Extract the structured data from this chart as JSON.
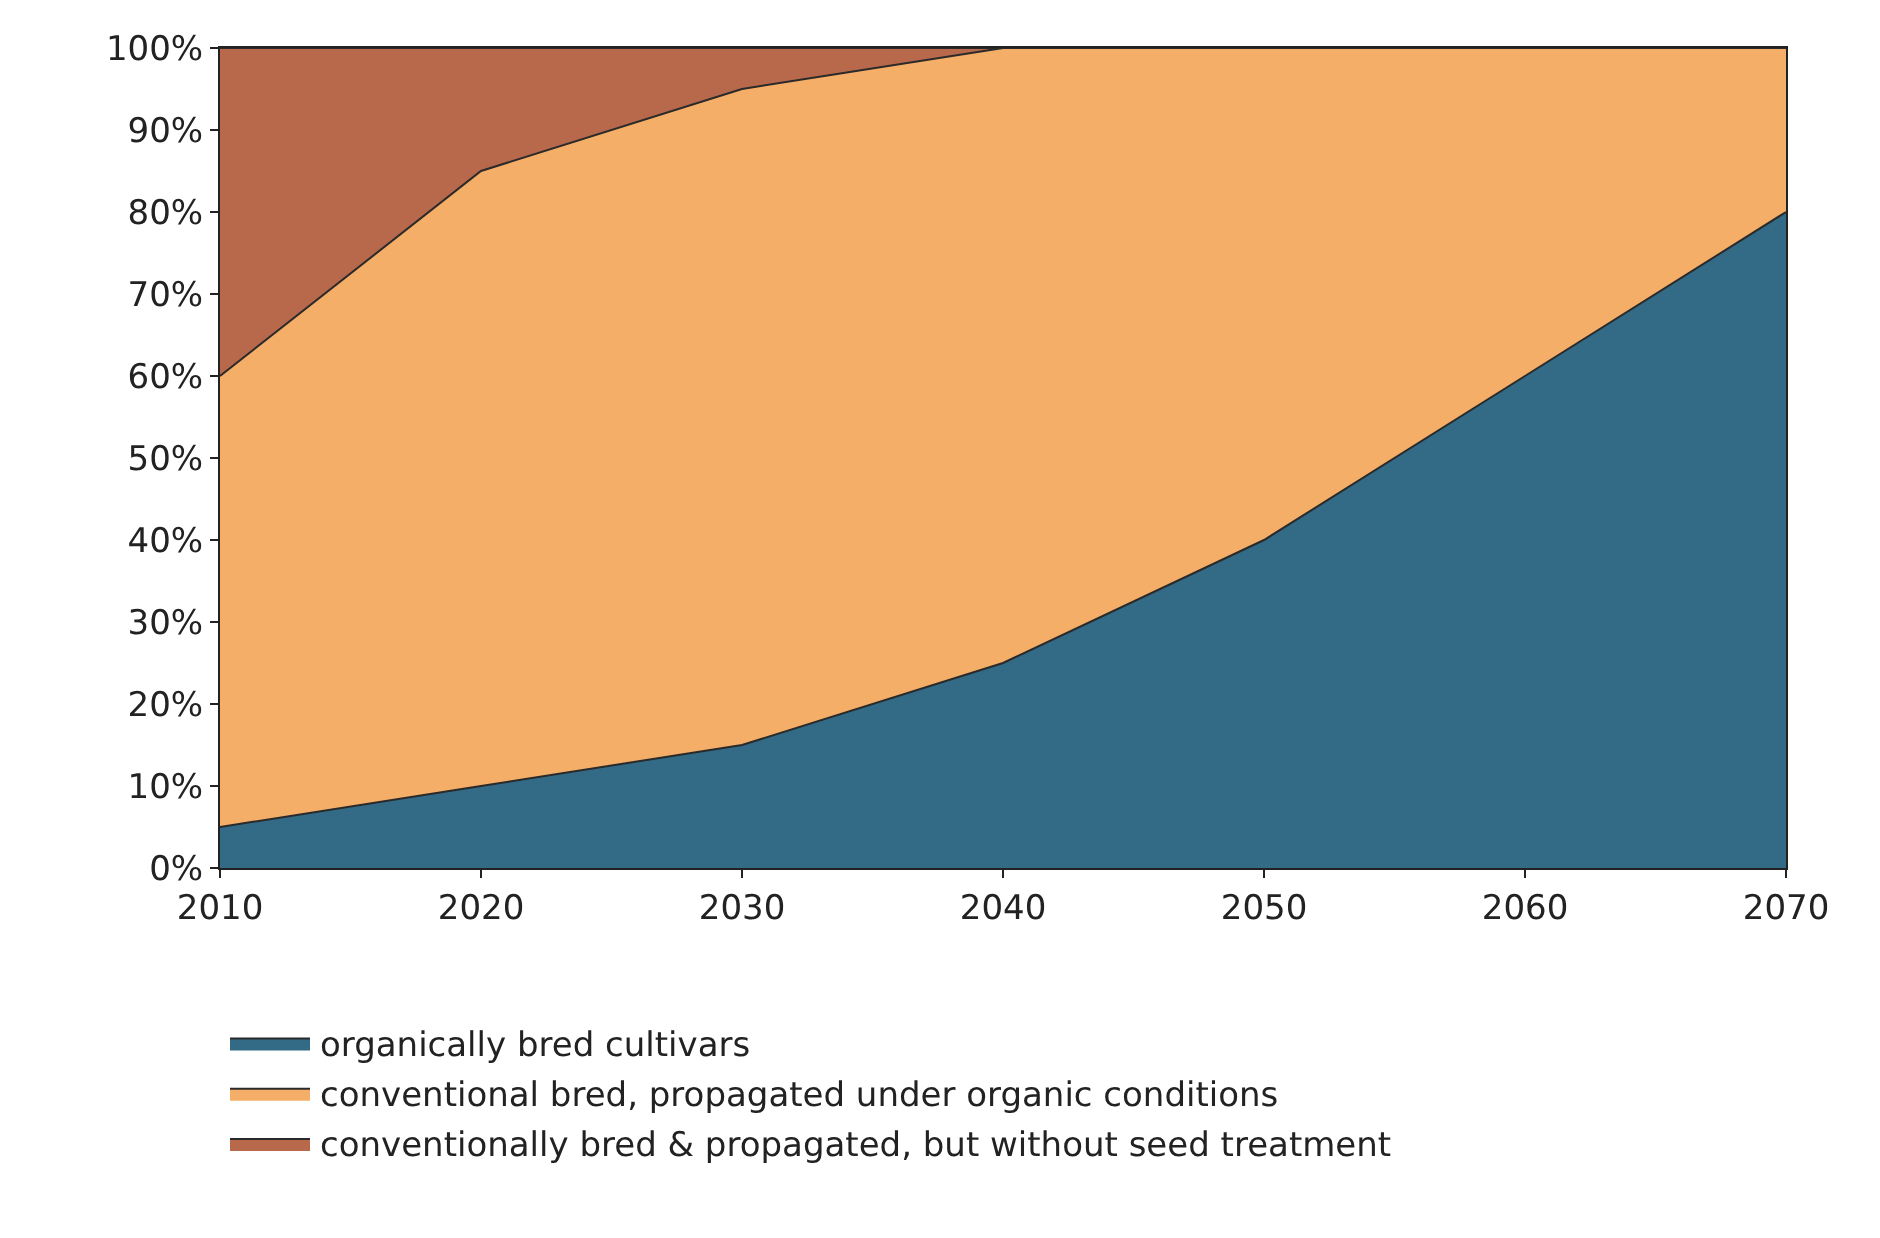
{
  "chart_data": {
    "type": "area",
    "stacked": true,
    "x": [
      2010,
      2020,
      2030,
      2040,
      2050,
      2060,
      2070
    ],
    "series": [
      {
        "name": "organically bred cultivars",
        "color": "#336a85",
        "values": [
          5,
          10,
          15,
          25,
          40,
          60,
          80
        ]
      },
      {
        "name": "conventional bred, propagated under organic conditions",
        "color": "#f4ae68",
        "values": [
          55,
          75,
          80,
          75,
          60,
          40,
          20
        ]
      },
      {
        "name": "conventionally bred & propagated, but without seed treatment",
        "color": "#b8694b",
        "values": [
          40,
          15,
          5,
          0,
          0,
          0,
          0
        ]
      }
    ],
    "xlim": [
      2010,
      2070
    ],
    "xticks": [
      2010,
      2020,
      2030,
      2040,
      2050,
      2060,
      2070
    ],
    "ylim": [
      0,
      100
    ],
    "yticks": [
      {
        "value": 0,
        "label": "0%"
      },
      {
        "value": 10,
        "label": "10%"
      },
      {
        "value": 20,
        "label": "20%"
      },
      {
        "value": 30,
        "label": "30%"
      },
      {
        "value": 40,
        "label": "40%"
      },
      {
        "value": 50,
        "label": "50%"
      },
      {
        "value": 60,
        "label": "60%"
      },
      {
        "value": 70,
        "label": "70%"
      },
      {
        "value": 80,
        "label": "80%"
      },
      {
        "value": 90,
        "label": "90%"
      },
      {
        "value": 100,
        "label": "100%"
      }
    ],
    "legend": "bottom"
  }
}
